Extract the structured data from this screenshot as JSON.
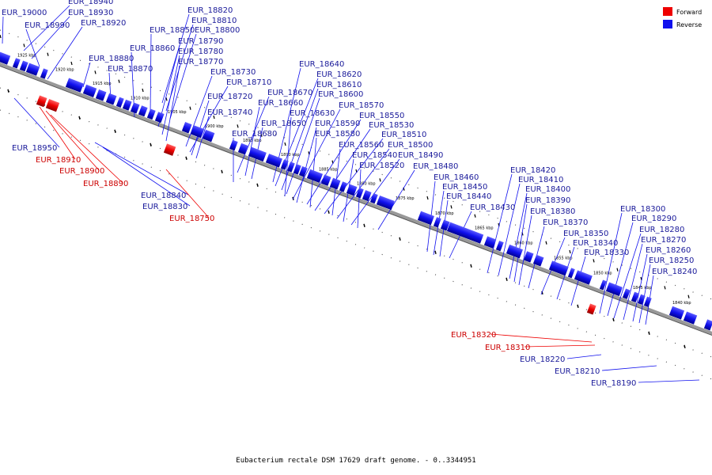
{
  "caption": "Eubacterium rectale DSM 17629 draft genome. - 0..3344951",
  "legend": [
    {
      "label": "Forward",
      "color": "#ee0000"
    },
    {
      "label": "Reverse",
      "color": "#1010ee"
    }
  ],
  "colors": {
    "forward": "#ee0000",
    "reverse": "#1010ee",
    "reverse_label": "#1a1a9a",
    "forward_label": "#cc0000",
    "backbone": "#999999"
  },
  "ticks": [
    "1925 kbp",
    "1920 kbp",
    "1915 kbp",
    "1910 kbp",
    "1905 kbp",
    "1900 kbp",
    "1895 kbp",
    "1890 kbp",
    "1885 kbp",
    "1880 kbp",
    "1875 kbp",
    "1870 kbp",
    "1865 kbp",
    "1860 kbp",
    "1855 kbp",
    "1850 kbp",
    "1845 kbp",
    "1840 kbp"
  ],
  "genes_top": [
    "EUR_19000",
    "EUR_18940",
    "EUR_18930",
    "EUR_18990",
    "EUR_18920",
    "EUR_18820",
    "EUR_18810",
    "EUR_18850",
    "EUR_18800",
    "EUR_18790",
    "EUR_18860",
    "EUR_18780",
    "EUR_18880",
    "EUR_18770",
    "EUR_18870",
    "EUR_18730",
    "EUR_18710",
    "EUR_18720",
    "EUR_18740",
    "EUR_18670",
    "EUR_18660",
    "EUR_18650",
    "EUR_18680",
    "EUR_18640",
    "EUR_18620",
    "EUR_18610",
    "EUR_18600",
    "EUR_18630",
    "EUR_18570",
    "EUR_18590",
    "EUR_18550",
    "EUR_18580",
    "EUR_18530",
    "EUR_18510",
    "EUR_18560",
    "EUR_18500",
    "EUR_18540",
    "EUR_18490",
    "EUR_18520",
    "EUR_18480",
    "EUR_18460",
    "EUR_18450",
    "EUR_18440",
    "EUR_18430",
    "EUR_18420",
    "EUR_18410",
    "EUR_18400",
    "EUR_18390",
    "EUR_18380",
    "EUR_18370",
    "EUR_18350",
    "EUR_18340",
    "EUR_18330",
    "EUR_18300",
    "EUR_18290",
    "EUR_18280",
    "EUR_18270",
    "EUR_18260",
    "EUR_18250",
    "EUR_18240"
  ],
  "genes_bottom_reverse": [
    "EUR_18950",
    "EUR_18840",
    "EUR_18830",
    "EUR_18220",
    "EUR_18210",
    "EUR_18190"
  ],
  "genes_bottom_forward": [
    "EUR_18910",
    "EUR_18900",
    "EUR_18890",
    "EUR_18750",
    "EUR_18320",
    "EUR_18310"
  ]
}
